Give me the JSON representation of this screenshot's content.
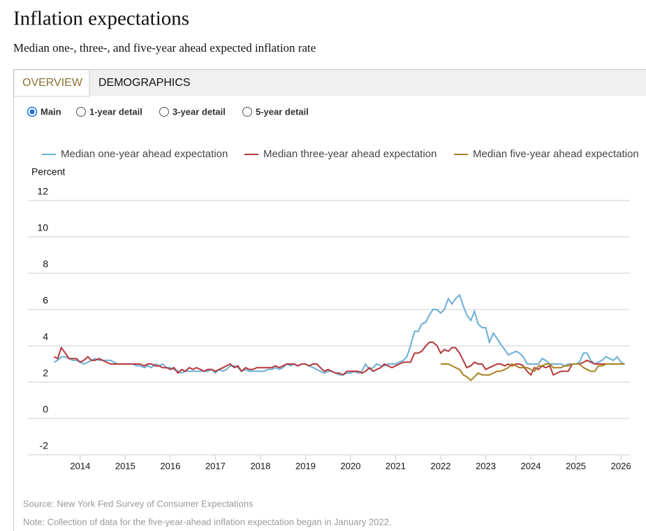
{
  "header": {
    "title": "Inflation expectations",
    "subtitle": "Median one-, three-, and five-year ahead expected inflation rate"
  },
  "controls": {
    "tabs": [
      "OVERVIEW",
      "DEMOGRAPHICS"
    ],
    "options": [
      "Main",
      "1-year detail",
      "3-year detail",
      "5-year detail"
    ]
  },
  "chart_data": {
    "type": "line",
    "y_label": "Percent",
    "x": [
      2013.42,
      2013.5,
      2013.58,
      2013.67,
      2013.75,
      2013.83,
      2013.92,
      2014,
      2014.08,
      2014.17,
      2014.25,
      2014.33,
      2014.42,
      2014.5,
      2014.58,
      2014.67,
      2014.75,
      2014.83,
      2014.92,
      2015,
      2015.08,
      2015.17,
      2015.25,
      2015.33,
      2015.42,
      2015.5,
      2015.58,
      2015.67,
      2015.75,
      2015.83,
      2015.92,
      2016,
      2016.08,
      2016.17,
      2016.25,
      2016.33,
      2016.42,
      2016.5,
      2016.58,
      2016.67,
      2016.75,
      2016.83,
      2016.92,
      2017,
      2017.08,
      2017.17,
      2017.25,
      2017.33,
      2017.42,
      2017.5,
      2017.58,
      2017.67,
      2017.75,
      2017.83,
      2017.92,
      2018,
      2018.08,
      2018.17,
      2018.25,
      2018.33,
      2018.42,
      2018.5,
      2018.58,
      2018.67,
      2018.75,
      2018.83,
      2018.92,
      2019,
      2019.08,
      2019.17,
      2019.25,
      2019.33,
      2019.42,
      2019.5,
      2019.58,
      2019.67,
      2019.75,
      2019.83,
      2019.92,
      2020,
      2020.08,
      2020.17,
      2020.25,
      2020.33,
      2020.42,
      2020.5,
      2020.58,
      2020.67,
      2020.75,
      2020.83,
      2020.92,
      2021,
      2021.08,
      2021.17,
      2021.25,
      2021.33,
      2021.42,
      2021.5,
      2021.58,
      2021.67,
      2021.75,
      2021.83,
      2021.92,
      2022,
      2022.08,
      2022.17,
      2022.25,
      2022.33,
      2022.42,
      2022.5,
      2022.58,
      2022.67,
      2022.75,
      2022.83,
      2022.92,
      2023,
      2023.08,
      2023.17,
      2023.25,
      2023.33,
      2023.42,
      2023.5,
      2023.58,
      2023.67,
      2023.75,
      2023.83,
      2023.92,
      2024,
      2024.08,
      2024.17,
      2024.25,
      2024.33,
      2024.42,
      2024.5,
      2024.58,
      2024.67,
      2024.75,
      2024.83,
      2024.92,
      2025,
      2025.08,
      2025.17,
      2025.25,
      2025.33,
      2025.42,
      2025.5,
      2025.58,
      2025.67,
      2025.75,
      2025.83,
      2025.92,
      2026,
      2026.08
    ],
    "series": [
      {
        "name": "Median one-year ahead expectation",
        "color": "#6aaed6",
        "values": [
          3.1,
          3.2,
          3.4,
          3.4,
          3.3,
          3.2,
          3.2,
          3.1,
          3.0,
          3.1,
          3.2,
          3.3,
          3.2,
          3.2,
          3.2,
          3.2,
          3.1,
          3.0,
          3.0,
          3.0,
          3.0,
          3.0,
          2.9,
          2.9,
          2.8,
          2.9,
          2.8,
          3.0,
          2.9,
          3.0,
          2.8,
          2.8,
          2.7,
          2.6,
          2.5,
          2.6,
          2.6,
          2.6,
          2.6,
          2.6,
          2.6,
          2.6,
          2.7,
          2.5,
          2.7,
          2.6,
          2.7,
          2.9,
          2.9,
          2.8,
          2.6,
          2.7,
          2.6,
          2.6,
          2.6,
          2.6,
          2.6,
          2.7,
          2.7,
          2.8,
          2.7,
          2.8,
          3.0,
          2.9,
          3.0,
          2.9,
          3.0,
          3.0,
          2.9,
          2.8,
          2.7,
          2.6,
          2.5,
          2.6,
          2.6,
          2.5,
          2.4,
          2.4,
          2.5,
          2.5,
          2.6,
          2.5,
          2.6,
          3.0,
          2.7,
          2.8,
          3.0,
          2.9,
          2.9,
          3.0,
          3.0,
          3.0,
          3.1,
          3.2,
          3.4,
          4.0,
          4.8,
          4.8,
          5.2,
          5.3,
          5.7,
          6.0,
          6.0,
          5.8,
          6.0,
          6.6,
          6.3,
          6.6,
          6.8,
          6.2,
          5.7,
          5.4,
          5.9,
          5.2,
          5.0,
          5.0,
          4.2,
          4.7,
          4.4,
          4.1,
          3.8,
          3.5,
          3.6,
          3.7,
          3.6,
          3.4,
          3.0,
          3.0,
          3.0,
          3.0,
          3.3,
          3.2,
          3.0,
          3.0,
          3.0,
          3.0,
          2.9,
          3.0,
          3.0,
          3.0,
          3.1,
          3.6,
          3.6,
          3.2,
          3.0,
          3.1,
          3.2,
          3.4,
          3.3,
          3.2,
          3.4,
          3.1,
          3.0
        ]
      },
      {
        "name": "Median three-year ahead expectation",
        "color": "#b5373a",
        "values": [
          3.4,
          3.3,
          3.9,
          3.6,
          3.3,
          3.3,
          3.3,
          3.1,
          3.2,
          3.4,
          3.2,
          3.2,
          3.3,
          3.2,
          3.1,
          3.0,
          3.0,
          3.0,
          3.0,
          3.0,
          3.0,
          3.0,
          3.0,
          3.0,
          2.9,
          3.0,
          3.0,
          2.9,
          2.9,
          2.8,
          2.8,
          2.7,
          2.8,
          2.5,
          2.7,
          2.6,
          2.8,
          2.7,
          2.8,
          2.7,
          2.6,
          2.7,
          2.7,
          2.6,
          2.7,
          2.8,
          2.9,
          3.0,
          2.8,
          2.9,
          2.6,
          2.8,
          2.7,
          2.7,
          2.8,
          2.8,
          2.8,
          2.8,
          2.8,
          2.9,
          2.8,
          2.9,
          3.0,
          3.0,
          3.0,
          2.9,
          3.0,
          3.0,
          2.9,
          3.0,
          3.0,
          2.8,
          2.6,
          2.7,
          2.6,
          2.5,
          2.5,
          2.4,
          2.6,
          2.6,
          2.6,
          2.6,
          2.5,
          2.6,
          2.8,
          2.6,
          2.7,
          2.8,
          3.0,
          2.9,
          2.8,
          2.9,
          3.0,
          3.1,
          3.1,
          3.1,
          3.6,
          3.6,
          3.7,
          4.0,
          4.2,
          4.2,
          4.0,
          3.6,
          3.8,
          3.7,
          3.9,
          3.9,
          3.6,
          3.2,
          2.8,
          2.9,
          3.1,
          3.0,
          3.0,
          2.7,
          2.8,
          2.9,
          3.0,
          3.0,
          2.9,
          3.0,
          2.9,
          3.0,
          3.0,
          2.9,
          2.6,
          2.4,
          2.8,
          2.7,
          2.9,
          2.8,
          2.9,
          2.4,
          2.5,
          2.6,
          2.6,
          2.6,
          3.0,
          3.0,
          3.0,
          3.1,
          3.2,
          3.1,
          3.0,
          3.0,
          3.0,
          3.0,
          3.0,
          3.0,
          3.0,
          3.0,
          3.0
        ]
      },
      {
        "name": "Median five-year ahead expectation",
        "color": "#a8811f",
        "values": [
          null,
          null,
          null,
          null,
          null,
          null,
          null,
          null,
          null,
          null,
          null,
          null,
          null,
          null,
          null,
          null,
          null,
          null,
          null,
          null,
          null,
          null,
          null,
          null,
          null,
          null,
          null,
          null,
          null,
          null,
          null,
          null,
          null,
          null,
          null,
          null,
          null,
          null,
          null,
          null,
          null,
          null,
          null,
          null,
          null,
          null,
          null,
          null,
          null,
          null,
          null,
          null,
          null,
          null,
          null,
          null,
          null,
          null,
          null,
          null,
          null,
          null,
          null,
          null,
          null,
          null,
          null,
          null,
          null,
          null,
          null,
          null,
          null,
          null,
          null,
          null,
          null,
          null,
          null,
          null,
          null,
          null,
          null,
          null,
          null,
          null,
          null,
          null,
          null,
          null,
          null,
          null,
          null,
          null,
          null,
          null,
          null,
          null,
          null,
          null,
          null,
          null,
          null,
          3.0,
          3.0,
          3.0,
          2.9,
          2.8,
          2.7,
          2.4,
          2.3,
          2.1,
          2.3,
          2.5,
          2.4,
          2.4,
          2.4,
          2.5,
          2.6,
          2.6,
          2.7,
          2.8,
          3.0,
          2.9,
          2.8,
          2.8,
          2.8,
          2.7,
          2.6,
          2.9,
          2.9,
          3.0,
          3.0,
          2.8,
          2.8,
          2.8,
          2.9,
          2.9,
          3.0,
          3.0,
          3.0,
          2.8,
          2.7,
          2.6,
          2.6,
          2.9,
          2.9,
          3.0,
          3.0,
          3.0,
          3.0,
          3.0,
          3.0
        ]
      }
    ],
    "xlim": [
      2012.84,
      2026.2
    ],
    "xticks": [
      2014,
      2015,
      2016,
      2017,
      2018,
      2019,
      2020,
      2021,
      2022,
      2023,
      2024,
      2025,
      2026
    ],
    "ylim": [
      -2,
      12
    ],
    "yticks": [
      -2,
      0,
      2,
      4,
      6,
      8,
      10,
      12
    ],
    "grid": true
  },
  "footer": {
    "source": "Source: New York Fed Survey of Consumer Expectations",
    "note": "Note: Collection of data for the five-year-ahead inflation expectation began in January 2022."
  }
}
